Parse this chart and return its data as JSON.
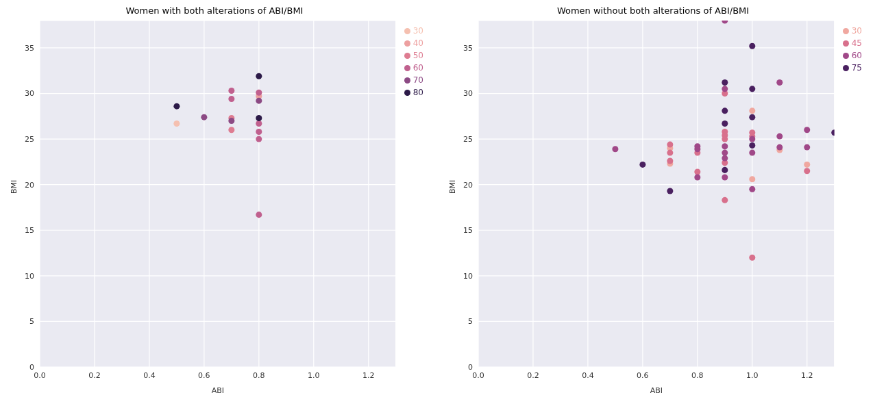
{
  "chart_data": [
    {
      "type": "scatter",
      "title": "Women with both alterations of ABI/BMI",
      "xlabel": "ABI",
      "ylabel": "BMI",
      "xlim": [
        0,
        1.3
      ],
      "xticks": [
        {
          "value": 0,
          "label": "0.0"
        },
        {
          "value": 0.2,
          "label": "0.2"
        },
        {
          "value": 0.4,
          "label": "0.4"
        },
        {
          "value": 0.6,
          "label": "0.6"
        },
        {
          "value": 0.8,
          "label": "0.8"
        },
        {
          "value": 1.0,
          "label": "1.0"
        },
        {
          "value": 1.2,
          "label": "1.2"
        }
      ],
      "ylim": [
        0,
        38
      ],
      "yticks": [
        0,
        5,
        10,
        15,
        20,
        25,
        30,
        35
      ],
      "grid": true,
      "legend": "right",
      "marker": "circle",
      "series": [
        {
          "name": "30",
          "color": "#f5c0b0",
          "x": [
            0.5
          ],
          "values": [
            26.7
          ]
        },
        {
          "name": "40",
          "color": "#eda0a0",
          "x": [
            0.8
          ],
          "values": [
            29.7
          ]
        },
        {
          "name": "50",
          "color": "#de7c91",
          "x": [
            0.7,
            0.7
          ],
          "values": [
            27.3,
            26.0
          ]
        },
        {
          "name": "60",
          "color": "#c0608e",
          "x": [
            0.7,
            0.7,
            0.8,
            0.8,
            0.8,
            0.8,
            0.8
          ],
          "values": [
            30.3,
            29.4,
            30.1,
            26.7,
            25.8,
            25.0,
            16.7
          ]
        },
        {
          "name": "70",
          "color": "#8c4a84",
          "x": [
            0.6,
            0.7,
            0.8
          ],
          "values": [
            27.4,
            27.0,
            29.2
          ]
        },
        {
          "name": "80",
          "color": "#2c1a48",
          "x": [
            0.5,
            0.8,
            0.8
          ],
          "values": [
            28.6,
            31.9,
            27.3
          ]
        }
      ]
    },
    {
      "type": "scatter",
      "title": "Women without both alterations of ABI/BMI",
      "xlabel": "ABI",
      "ylabel": "BMI",
      "xlim": [
        0,
        1.3
      ],
      "xticks": [
        {
          "value": 0,
          "label": "0.0"
        },
        {
          "value": 0.2,
          "label": "0.2"
        },
        {
          "value": 0.4,
          "label": "0.4"
        },
        {
          "value": 0.6,
          "label": "0.6"
        },
        {
          "value": 0.8,
          "label": "0.8"
        },
        {
          "value": 1.0,
          "label": "1.0"
        },
        {
          "value": 1.2,
          "label": "1.2"
        }
      ],
      "ylim": [
        0,
        38
      ],
      "yticks": [
        0,
        5,
        10,
        15,
        20,
        25,
        30,
        35
      ],
      "grid": true,
      "legend": "right",
      "marker": "circle",
      "series": [
        {
          "name": "30",
          "color": "#f0a8a0",
          "x": [
            0.7,
            0.7,
            1.0,
            1.0,
            1.1,
            1.2
          ],
          "values": [
            24.0,
            22.3,
            28.1,
            20.6,
            23.8,
            22.2
          ]
        },
        {
          "name": "45",
          "color": "#d8708c",
          "x": [
            0.7,
            0.7,
            0.7,
            0.8,
            0.8,
            0.9,
            0.9,
            0.9,
            0.9,
            0.9,
            0.9,
            1.0,
            1.0,
            1.0,
            1.2
          ],
          "values": [
            24.4,
            23.5,
            22.6,
            23.5,
            21.4,
            30.0,
            25.8,
            25.4,
            25.0,
            22.4,
            18.3,
            25.7,
            25.3,
            12.0,
            21.5
          ]
        },
        {
          "name": "60",
          "color": "#a04888",
          "x": [
            0.5,
            0.8,
            0.8,
            0.8,
            0.9,
            0.9,
            0.9,
            0.9,
            0.9,
            0.9,
            1.0,
            1.0,
            1.0,
            1.1,
            1.1,
            1.1,
            1.2,
            1.2
          ],
          "values": [
            23.9,
            24.2,
            23.9,
            20.8,
            38.0,
            30.5,
            24.2,
            23.5,
            22.9,
            20.8,
            25.0,
            23.5,
            19.5,
            31.2,
            25.3,
            24.1,
            26.0,
            24.1
          ]
        },
        {
          "name": "75",
          "color": "#4a2060",
          "x": [
            0.6,
            0.7,
            0.9,
            0.9,
            0.9,
            0.9,
            1.0,
            1.0,
            1.0,
            1.0,
            1.3
          ],
          "values": [
            22.2,
            19.3,
            31.2,
            28.1,
            26.7,
            21.6,
            35.2,
            30.5,
            27.4,
            24.3,
            25.7
          ]
        }
      ]
    }
  ]
}
